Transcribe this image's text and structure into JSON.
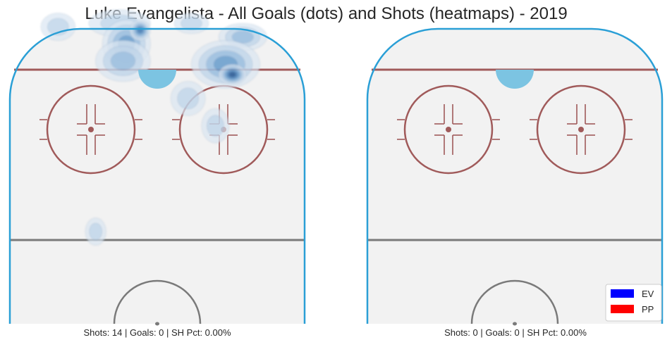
{
  "title": "Luke Evangelista - All Goals (dots) and Shots (heatmaps) - 2019",
  "colors": {
    "rink_fill": "#f2f2f2",
    "boards": "#2a9fd6",
    "red_line": "#a05a5a",
    "blue_line": "#7a7a7a",
    "heat": [
      "#dae6f2",
      "#b9d1e8",
      "#8fb7dc",
      "#5f96c8",
      "#3b73ad",
      "#1f4f8a"
    ],
    "ev": "#0000ff",
    "pp": "#ff0000"
  },
  "chart_data": [
    {
      "type": "heatmap",
      "caption": "Shots: 14 | Goals: 0 | SH Pct: 0.00%",
      "shots": 14,
      "goals": 0,
      "sh_pct": "0.00%",
      "shot_density": [
        {
          "x": -29,
          "y": 87,
          "level": 1,
          "rx": 5,
          "ry": 4
        },
        {
          "x": -11,
          "y": 88,
          "level": 1,
          "rx": 9,
          "ry": 4
        },
        {
          "x": -9,
          "y": 82,
          "level": 3,
          "rx": 7,
          "ry": 7
        },
        {
          "x": -5,
          "y": 86,
          "level": 4,
          "rx": 3,
          "ry": 3
        },
        {
          "x": -10,
          "y": 77,
          "level": 2,
          "rx": 8,
          "ry": 6
        },
        {
          "x": 10,
          "y": 88,
          "level": 1,
          "rx": 5,
          "ry": 3
        },
        {
          "x": 25,
          "y": 84,
          "level": 2,
          "rx": 7,
          "ry": 4
        },
        {
          "x": 20,
          "y": 76,
          "level": 3,
          "rx": 10,
          "ry": 7
        },
        {
          "x": 22,
          "y": 73,
          "level": 5,
          "rx": 4,
          "ry": 3
        },
        {
          "x": 9,
          "y": 66,
          "level": 1,
          "rx": 5,
          "ry": 5
        },
        {
          "x": 17,
          "y": 58,
          "level": 1,
          "rx": 4,
          "ry": 5
        },
        {
          "x": -18,
          "y": 27,
          "level": 1,
          "rx": 3,
          "ry": 4
        }
      ],
      "goal_dots": []
    },
    {
      "type": "heatmap",
      "caption": "Shots: 0 | Goals: 0 | SH Pct: 0.00%",
      "shots": 0,
      "goals": 0,
      "sh_pct": "0.00%",
      "shot_density": [],
      "goal_dots": [],
      "legend": [
        {
          "label": "EV",
          "color": "#0000ff"
        },
        {
          "label": "PP",
          "color": "#ff0000"
        }
      ]
    }
  ]
}
